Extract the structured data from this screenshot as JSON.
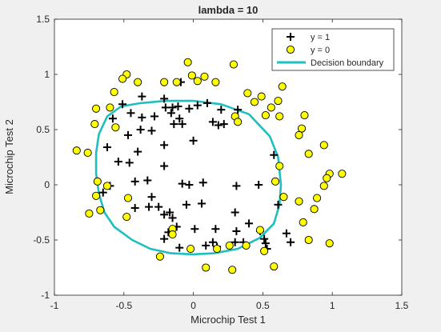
{
  "chart_data": {
    "type": "scatter",
    "title": "lambda = 10",
    "xlabel": "Microchip Test 1",
    "ylabel": "Microchip Test 2",
    "xlim": [
      -1,
      1.5
    ],
    "ylim": [
      -1,
      1.5
    ],
    "xticks": [
      -1,
      -0.5,
      0,
      0.5,
      1,
      1.5
    ],
    "yticks": [
      -1,
      -0.5,
      0,
      0.5,
      1,
      1.5
    ],
    "xtick_labels": [
      "-1",
      "-0.5",
      "0",
      "0.5",
      "1",
      "1.5"
    ],
    "ytick_labels": [
      "-1",
      "-0.5",
      "0",
      "0.5",
      "1",
      "1.5"
    ],
    "grid": false,
    "legend_position": "top-right",
    "legend": [
      "y = 1",
      "y = 0",
      "Decision boundary"
    ],
    "colors": {
      "positive": "#000000",
      "negative_fill": "#ffff00",
      "negative_edge": "#000000",
      "boundary": "#1fbfbf",
      "plot_bg": "#ffffff",
      "figure_bg": "#f0f0f0"
    },
    "series": [
      {
        "name": "y = 1",
        "marker": "plus",
        "points": [
          [
            -0.09,
            0.93
          ],
          [
            -0.21,
            0.78
          ],
          [
            -0.37,
            0.8
          ],
          [
            -0.51,
            0.73
          ],
          [
            -0.2,
            0.7
          ],
          [
            -0.15,
            0.7
          ],
          [
            -0.11,
            0.71
          ],
          [
            -0.03,
            0.69
          ],
          [
            0.03,
            0.72
          ],
          [
            0.1,
            0.74
          ],
          [
            0.2,
            0.68
          ],
          [
            0.32,
            0.68
          ],
          [
            -0.45,
            0.65
          ],
          [
            -0.58,
            0.6
          ],
          [
            -0.37,
            0.61
          ],
          [
            -0.28,
            0.62
          ],
          [
            -0.16,
            0.65
          ],
          [
            -0.1,
            0.6
          ],
          [
            -0.14,
            0.55
          ],
          [
            -0.08,
            0.55
          ],
          [
            0.14,
            0.57
          ],
          [
            0.18,
            0.54
          ],
          [
            0.22,
            0.55
          ],
          [
            -0.38,
            0.5
          ],
          [
            -0.3,
            0.49
          ],
          [
            -0.47,
            0.45
          ],
          [
            -0.62,
            0.34
          ],
          [
            -0.4,
            0.3
          ],
          [
            -0.21,
            0.36
          ],
          [
            0.0,
            0.4
          ],
          [
            0.58,
            0.27
          ],
          [
            -0.54,
            0.21
          ],
          [
            -0.46,
            0.2
          ],
          [
            -0.21,
            0.17
          ],
          [
            -0.42,
            0.03
          ],
          [
            -0.33,
            0.04
          ],
          [
            -0.6,
            -0.01
          ],
          [
            -0.08,
            0.01
          ],
          [
            -0.03,
            0.0
          ],
          [
            0.07,
            0.02
          ],
          [
            0.31,
            -0.01
          ],
          [
            0.47,
            0.0
          ],
          [
            -0.65,
            -0.07
          ],
          [
            -0.3,
            -0.11
          ],
          [
            -0.42,
            -0.21
          ],
          [
            -0.32,
            -0.2
          ],
          [
            -0.25,
            -0.2
          ],
          [
            -0.21,
            -0.27
          ],
          [
            -0.17,
            -0.25
          ],
          [
            -0.05,
            -0.18
          ],
          [
            0.06,
            -0.17
          ],
          [
            0.3,
            -0.25
          ],
          [
            0.61,
            -0.18
          ],
          [
            -0.15,
            -0.3
          ],
          [
            -0.12,
            -0.38
          ],
          [
            0.4,
            -0.35
          ],
          [
            -0.18,
            -0.43
          ],
          [
            0.01,
            -0.4
          ],
          [
            0.16,
            -0.4
          ],
          [
            0.31,
            -0.42
          ],
          [
            0.48,
            -0.42
          ],
          [
            0.51,
            -0.49
          ],
          [
            0.67,
            -0.44
          ],
          [
            -0.21,
            -0.49
          ],
          [
            0.14,
            -0.52
          ],
          [
            0.09,
            -0.55
          ],
          [
            0.17,
            -0.56
          ],
          [
            0.3,
            -0.52
          ],
          [
            0.36,
            -0.52
          ],
          [
            0.52,
            -0.53
          ],
          [
            0.53,
            -0.58
          ],
          [
            0.7,
            -0.52
          ],
          [
            -0.1,
            -0.57
          ]
        ]
      },
      {
        "name": "y = 0",
        "marker": "circle",
        "points": [
          [
            -0.04,
            1.11
          ],
          [
            0.29,
            1.09
          ],
          [
            -0.48,
            1.0
          ],
          [
            -0.01,
            0.99
          ],
          [
            0.08,
            0.98
          ],
          [
            -0.51,
            0.96
          ],
          [
            -0.4,
            0.93
          ],
          [
            -0.21,
            0.93
          ],
          [
            -0.12,
            0.93
          ],
          [
            0.03,
            0.94
          ],
          [
            0.16,
            0.93
          ],
          [
            0.39,
            0.83
          ],
          [
            0.49,
            0.8
          ],
          [
            0.64,
            0.89
          ],
          [
            -0.57,
            0.84
          ],
          [
            0.44,
            0.75
          ],
          [
            0.61,
            0.76
          ],
          [
            0.56,
            0.7
          ],
          [
            -0.7,
            0.69
          ],
          [
            -0.6,
            0.7
          ],
          [
            0.52,
            0.63
          ],
          [
            0.62,
            0.62
          ],
          [
            0.8,
            0.63
          ],
          [
            0.3,
            0.62
          ],
          [
            0.32,
            0.57
          ],
          [
            -0.71,
            0.55
          ],
          [
            -0.56,
            0.52
          ],
          [
            0.78,
            0.51
          ],
          [
            0.76,
            0.45
          ],
          [
            -0.84,
            0.31
          ],
          [
            -0.76,
            0.29
          ],
          [
            0.94,
            0.36
          ],
          [
            0.83,
            0.28
          ],
          [
            0.62,
            0.17
          ],
          [
            0.98,
            0.1
          ],
          [
            1.07,
            0.1
          ],
          [
            0.96,
            0.06
          ],
          [
            -0.69,
            0.03
          ],
          [
            -0.62,
            -0.01
          ],
          [
            0.59,
            0.03
          ],
          [
            0.94,
            -0.01
          ],
          [
            -0.7,
            -0.1
          ],
          [
            -0.47,
            -0.12
          ],
          [
            0.65,
            -0.11
          ],
          [
            0.89,
            -0.12
          ],
          [
            0.76,
            -0.15
          ],
          [
            -0.75,
            -0.26
          ],
          [
            -0.67,
            -0.23
          ],
          [
            -0.48,
            -0.29
          ],
          [
            0.87,
            -0.22
          ],
          [
            0.79,
            -0.34
          ],
          [
            -0.15,
            -0.4
          ],
          [
            0.48,
            -0.41
          ],
          [
            -0.15,
            -0.45
          ],
          [
            0.83,
            -0.5
          ],
          [
            0.98,
            -0.53
          ],
          [
            -0.02,
            -0.58
          ],
          [
            0.17,
            -0.58
          ],
          [
            0.26,
            -0.55
          ],
          [
            0.38,
            -0.55
          ],
          [
            0.51,
            -0.6
          ],
          [
            -0.24,
            -0.65
          ],
          [
            0.58,
            -0.74
          ],
          [
            0.09,
            -0.75
          ],
          [
            0.28,
            -0.77
          ]
        ]
      },
      {
        "name": "Decision boundary",
        "marker": "line",
        "points": [
          [
            0.0,
            0.76
          ],
          [
            0.2,
            0.73
          ],
          [
            0.4,
            0.64
          ],
          [
            0.55,
            0.44
          ],
          [
            0.61,
            0.25
          ],
          [
            0.63,
            0.0
          ],
          [
            0.62,
            -0.18
          ],
          [
            0.58,
            -0.35
          ],
          [
            0.48,
            -0.48
          ],
          [
            0.32,
            -0.58
          ],
          [
            0.15,
            -0.62
          ],
          [
            0.0,
            -0.63
          ],
          [
            -0.16,
            -0.62
          ],
          [
            -0.31,
            -0.58
          ],
          [
            -0.44,
            -0.5
          ],
          [
            -0.57,
            -0.38
          ],
          [
            -0.64,
            -0.25
          ],
          [
            -0.68,
            -0.08
          ],
          [
            -0.7,
            0.1
          ],
          [
            -0.7,
            0.29
          ],
          [
            -0.68,
            0.46
          ],
          [
            -0.62,
            0.62
          ],
          [
            -0.52,
            0.71
          ],
          [
            -0.38,
            0.74
          ],
          [
            -0.2,
            0.76
          ],
          [
            0.0,
            0.76
          ]
        ]
      }
    ]
  }
}
